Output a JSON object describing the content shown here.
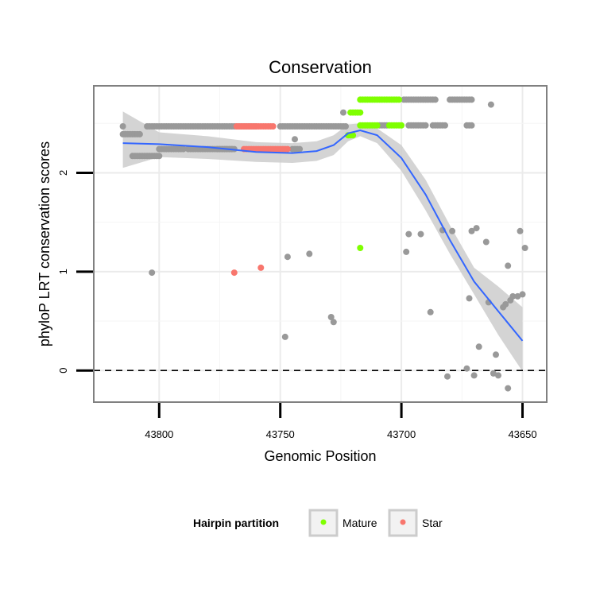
{
  "chart_data": {
    "type": "scatter",
    "title": "Conservation",
    "xlabel": "Genomic Position",
    "ylabel": "phyloP LRT conservation scores",
    "x_reversed": true,
    "xlim": [
      43827,
      43640
    ],
    "ylim": [
      -0.32,
      2.88
    ],
    "x_ticks": [
      43800,
      43750,
      43700,
      43650
    ],
    "x_tick_labels": [
      "43800",
      "43750",
      "43700",
      "43650"
    ],
    "y_ticks": [
      0,
      1,
      2
    ],
    "y_tick_labels": [
      "0",
      "1",
      "2"
    ],
    "grid": true,
    "reference_line": {
      "y": 0,
      "style": "dashed"
    },
    "colors": {
      "background_points": "#999999",
      "Mature": "#7FFF00",
      "Star": "#F8766D",
      "smooth_line": "#3366FF",
      "ribbon": "#CCCCCC",
      "grid": "#EBEBEB",
      "panel_border": "#808080"
    },
    "legend": {
      "title": "Hairpin partition",
      "position": "bottom",
      "entries": [
        {
          "label": "Mature",
          "color": "#7FFF00"
        },
        {
          "label": "Star",
          "color": "#F8766D"
        }
      ]
    },
    "point_runs": [
      {
        "group": "Other",
        "y": 2.47,
        "x_from": 43815,
        "x_to": 43815,
        "step": 1
      },
      {
        "group": "Other",
        "y": 2.39,
        "x_from": 43815,
        "x_to": 43808,
        "step": 1
      },
      {
        "group": "Other",
        "y": 2.47,
        "x_from": 43805,
        "x_to": 43760,
        "step": 1
      },
      {
        "group": "Other",
        "y": 2.24,
        "x_from": 43800,
        "x_to": 43798,
        "step": 1
      },
      {
        "group": "Other",
        "y": 2.24,
        "x_from": 43788,
        "x_to": 43770,
        "step": 1
      },
      {
        "group": "Other",
        "y": 2.17,
        "x_from": 43811,
        "x_to": 43800,
        "step": 1
      },
      {
        "group": "Other",
        "y": 2.24,
        "x_from": 43797,
        "x_to": 43790,
        "step": 1
      },
      {
        "group": "Other",
        "y": 2.24,
        "x_from": 43776,
        "x_to": 43769,
        "step": 1
      },
      {
        "group": "Star",
        "y": 2.47,
        "x_from": 43768,
        "x_to": 43753,
        "step": 1
      },
      {
        "group": "Star",
        "y": 2.24,
        "x_from": 43765,
        "x_to": 43747,
        "step": 1
      },
      {
        "group": "Other",
        "y": 2.47,
        "x_from": 43750,
        "x_to": 43723,
        "step": 1
      },
      {
        "group": "Other",
        "y": 2.24,
        "x_from": 43745,
        "x_to": 43742,
        "step": 1
      },
      {
        "group": "Other",
        "y": 2.61,
        "x_from": 43724,
        "x_to": 43724,
        "step": 1
      },
      {
        "group": "Mature",
        "y": 2.61,
        "x_from": 43721,
        "x_to": 43717,
        "step": 1
      },
      {
        "group": "Mature",
        "y": 2.38,
        "x_from": 43722,
        "x_to": 43720,
        "step": 1
      },
      {
        "group": "Mature",
        "y": 2.74,
        "x_from": 43717,
        "x_to": 43701,
        "step": 1
      },
      {
        "group": "Mature",
        "y": 2.48,
        "x_from": 43717,
        "x_to": 43710,
        "step": 1
      },
      {
        "group": "Mature",
        "y": 2.48,
        "x_from": 43705,
        "x_to": 43700,
        "step": 1
      },
      {
        "group": "Other",
        "y": 2.74,
        "x_from": 43699,
        "x_to": 43686,
        "step": 1
      },
      {
        "group": "Other",
        "y": 2.74,
        "x_from": 43680,
        "x_to": 43671,
        "step": 1
      },
      {
        "group": "Other",
        "y": 2.48,
        "x_from": 43709,
        "x_to": 43706,
        "step": 1
      },
      {
        "group": "Other",
        "y": 2.48,
        "x_from": 43697,
        "x_to": 43690,
        "step": 1
      },
      {
        "group": "Other",
        "y": 2.48,
        "x_from": 43687,
        "x_to": 43682,
        "step": 1
      },
      {
        "group": "Other",
        "y": 2.48,
        "x_from": 43673,
        "x_to": 43671,
        "step": 1
      }
    ],
    "points": [
      {
        "group": "Other",
        "x": 43803,
        "y": 0.99
      },
      {
        "group": "Star",
        "x": 43769,
        "y": 0.99
      },
      {
        "group": "Star",
        "x": 43758,
        "y": 1.04
      },
      {
        "group": "Other",
        "x": 43747,
        "y": 1.15
      },
      {
        "group": "Other",
        "x": 43738,
        "y": 1.18
      },
      {
        "group": "Other",
        "x": 43748,
        "y": 0.34
      },
      {
        "group": "Other",
        "x": 43729,
        "y": 0.54
      },
      {
        "group": "Other",
        "x": 43728,
        "y": 0.49
      },
      {
        "group": "Other",
        "x": 43744,
        "y": 2.34
      },
      {
        "group": "Mature",
        "x": 43717,
        "y": 1.24
      },
      {
        "group": "Other",
        "x": 43697,
        "y": 1.38
      },
      {
        "group": "Other",
        "x": 43698,
        "y": 1.2
      },
      {
        "group": "Other",
        "x": 43692,
        "y": 1.38
      },
      {
        "group": "Other",
        "x": 43688,
        "y": 0.59
      },
      {
        "group": "Other",
        "x": 43683,
        "y": 1.42
      },
      {
        "group": "Other",
        "x": 43679,
        "y": 1.41
      },
      {
        "group": "Other",
        "x": 43681,
        "y": -0.06
      },
      {
        "group": "Other",
        "x": 43673,
        "y": 0.02
      },
      {
        "group": "Other",
        "x": 43670,
        "y": -0.05
      },
      {
        "group": "Other",
        "x": 43668,
        "y": 0.24
      },
      {
        "group": "Other",
        "x": 43665,
        "y": 1.3
      },
      {
        "group": "Other",
        "x": 43663,
        "y": 2.69
      },
      {
        "group": "Other",
        "x": 43671,
        "y": 1.41
      },
      {
        "group": "Other",
        "x": 43669,
        "y": 1.44
      },
      {
        "group": "Other",
        "x": 43672,
        "y": 0.73
      },
      {
        "group": "Other",
        "x": 43664,
        "y": 0.69
      },
      {
        "group": "Other",
        "x": 43662,
        "y": -0.03
      },
      {
        "group": "Other",
        "x": 43661,
        "y": 0.16
      },
      {
        "group": "Other",
        "x": 43660,
        "y": -0.05
      },
      {
        "group": "Other",
        "x": 43658,
        "y": 0.64
      },
      {
        "group": "Other",
        "x": 43657,
        "y": 0.67
      },
      {
        "group": "Other",
        "x": 43656,
        "y": -0.18
      },
      {
        "group": "Other",
        "x": 43656,
        "y": 1.06
      },
      {
        "group": "Other",
        "x": 43655,
        "y": 0.71
      },
      {
        "group": "Other",
        "x": 43654,
        "y": 0.75
      },
      {
        "group": "Other",
        "x": 43652,
        "y": 0.75
      },
      {
        "group": "Other",
        "x": 43650,
        "y": 0.77
      },
      {
        "group": "Other",
        "x": 43651,
        "y": 1.41
      },
      {
        "group": "Other",
        "x": 43649,
        "y": 1.24
      }
    ],
    "smooth_line": {
      "x": [
        43815,
        43800,
        43780,
        43760,
        43745,
        43735,
        43728,
        43722,
        43717,
        43710,
        43700,
        43690,
        43680,
        43670,
        43660,
        43650
      ],
      "y": [
        2.3,
        2.29,
        2.26,
        2.21,
        2.2,
        2.22,
        2.28,
        2.4,
        2.43,
        2.38,
        2.15,
        1.78,
        1.32,
        0.9,
        0.6,
        0.3
      ],
      "ci_low": [
        2.05,
        2.16,
        2.14,
        2.11,
        2.1,
        2.12,
        2.18,
        2.32,
        2.37,
        2.3,
        2.02,
        1.62,
        1.18,
        0.77,
        0.36,
        -0.01
      ],
      "ci_high": [
        2.62,
        2.41,
        2.37,
        2.31,
        2.3,
        2.32,
        2.38,
        2.49,
        2.5,
        2.45,
        2.28,
        1.93,
        1.47,
        1.04,
        0.85,
        0.64
      ]
    }
  }
}
